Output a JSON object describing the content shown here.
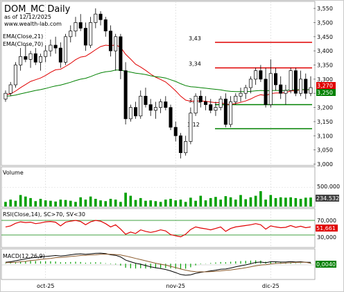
{
  "chart_data": {
    "type": "candlestick",
    "title": "DOM_MC Daily",
    "subtitle": "as of 12/12/2025",
    "source": "www.wealth-lab.com",
    "x_ticks": [
      "oct-25",
      "nov-25",
      "dic-25"
    ],
    "price_pane": {
      "legend": [
        "EMA(Close,21)",
        "EMA(Close,70)"
      ],
      "ylim": [
        3.0,
        3.56
      ],
      "y_ticks": [
        "3,550",
        "3,500",
        "3,450",
        "3,400",
        "3,350",
        "3,300",
        "3,250",
        "3,200",
        "3,150",
        "3,100",
        "3,050",
        "3,000"
      ],
      "last_badges": [
        "3,270",
        "3,250"
      ],
      "levels": [
        {
          "label": "3,43",
          "value": 3.43,
          "color": "#e00000"
        },
        {
          "label": "3,34",
          "value": 3.34,
          "color": "#e00000"
        },
        {
          "label": "3,21",
          "value": 3.21,
          "color": "#008000"
        },
        {
          "label": "3,12",
          "value": 3.125,
          "color": "#008000"
        }
      ],
      "candles": [
        [
          3.23,
          3.26,
          3.22,
          3.25
        ],
        [
          3.25,
          3.29,
          3.24,
          3.28
        ],
        [
          3.28,
          3.36,
          3.27,
          3.35
        ],
        [
          3.35,
          3.41,
          3.33,
          3.38
        ],
        [
          3.38,
          3.42,
          3.36,
          3.37
        ],
        [
          3.37,
          3.4,
          3.34,
          3.39
        ],
        [
          3.39,
          3.41,
          3.35,
          3.36
        ],
        [
          3.36,
          3.39,
          3.33,
          3.38
        ],
        [
          3.38,
          3.42,
          3.36,
          3.4
        ],
        [
          3.4,
          3.44,
          3.38,
          3.42
        ],
        [
          3.42,
          3.45,
          3.39,
          3.41
        ],
        [
          3.41,
          3.43,
          3.34,
          3.36
        ],
        [
          3.36,
          3.46,
          3.35,
          3.45
        ],
        [
          3.45,
          3.49,
          3.43,
          3.47
        ],
        [
          3.47,
          3.52,
          3.45,
          3.5
        ],
        [
          3.5,
          3.53,
          3.47,
          3.48
        ],
        [
          3.48,
          3.5,
          3.4,
          3.42
        ],
        [
          3.42,
          3.52,
          3.41,
          3.5
        ],
        [
          3.5,
          3.55,
          3.48,
          3.53
        ],
        [
          3.53,
          3.54,
          3.49,
          3.51
        ],
        [
          3.51,
          3.52,
          3.45,
          3.47
        ],
        [
          3.47,
          3.49,
          3.38,
          3.4
        ],
        [
          3.4,
          3.46,
          3.33,
          3.45
        ],
        [
          3.45,
          3.46,
          3.3,
          3.33
        ],
        [
          3.33,
          3.36,
          3.14,
          3.16
        ],
        [
          3.16,
          3.21,
          3.15,
          3.2
        ],
        [
          3.2,
          3.22,
          3.16,
          3.17
        ],
        [
          3.17,
          3.26,
          3.16,
          3.24
        ],
        [
          3.24,
          3.27,
          3.2,
          3.21
        ],
        [
          3.21,
          3.23,
          3.17,
          3.19
        ],
        [
          3.19,
          3.22,
          3.16,
          3.2
        ],
        [
          3.2,
          3.23,
          3.18,
          3.22
        ],
        [
          3.22,
          3.24,
          3.19,
          3.2
        ],
        [
          3.2,
          3.21,
          3.12,
          3.13
        ],
        [
          3.13,
          3.15,
          3.08,
          3.1
        ],
        [
          3.1,
          3.11,
          3.02,
          3.04
        ],
        [
          3.04,
          3.1,
          3.03,
          3.08
        ],
        [
          3.08,
          3.2,
          3.07,
          3.18
        ],
        [
          3.18,
          3.25,
          3.17,
          3.24
        ],
        [
          3.24,
          3.26,
          3.2,
          3.22
        ],
        [
          3.22,
          3.24,
          3.19,
          3.21
        ],
        [
          3.21,
          3.23,
          3.18,
          3.19
        ],
        [
          3.19,
          3.22,
          3.17,
          3.2
        ],
        [
          3.2,
          3.24,
          3.19,
          3.23
        ],
        [
          3.23,
          3.25,
          3.13,
          3.14
        ],
        [
          3.14,
          3.24,
          3.13,
          3.22
        ],
        [
          3.22,
          3.25,
          3.21,
          3.24
        ],
        [
          3.24,
          3.27,
          3.22,
          3.25
        ],
        [
          3.25,
          3.28,
          3.23,
          3.27
        ],
        [
          3.27,
          3.31,
          3.25,
          3.3
        ],
        [
          3.3,
          3.34,
          3.28,
          3.33
        ],
        [
          3.33,
          3.35,
          3.29,
          3.3
        ],
        [
          3.3,
          3.34,
          3.2,
          3.21
        ],
        [
          3.21,
          3.37,
          3.2,
          3.32
        ],
        [
          3.32,
          3.34,
          3.26,
          3.28
        ],
        [
          3.28,
          3.31,
          3.23,
          3.25
        ],
        [
          3.25,
          3.28,
          3.21,
          3.26
        ],
        [
          3.26,
          3.34,
          3.25,
          3.33
        ],
        [
          3.33,
          3.34,
          3.24,
          3.25
        ],
        [
          3.25,
          3.33,
          3.24,
          3.3
        ],
        [
          3.3,
          3.32,
          3.23,
          3.25
        ],
        [
          3.25,
          3.31,
          3.24,
          3.27
        ]
      ],
      "ema21": [
        3.245,
        3.248,
        3.258,
        3.27,
        3.281,
        3.292,
        3.298,
        3.304,
        3.313,
        3.324,
        3.333,
        3.335,
        3.345,
        3.356,
        3.369,
        3.378,
        3.381,
        3.392,
        3.404,
        3.415,
        3.42,
        3.418,
        3.421,
        3.413,
        3.388,
        3.371,
        3.353,
        3.343,
        3.331,
        3.318,
        3.307,
        3.299,
        3.29,
        3.275,
        3.259,
        3.24,
        3.226,
        3.222,
        3.223,
        3.223,
        3.222,
        3.219,
        3.217,
        3.218,
        3.211,
        3.211,
        3.214,
        3.218,
        3.223,
        3.23,
        3.239,
        3.245,
        3.242,
        3.249,
        3.251,
        3.251,
        3.252,
        3.259,
        3.259,
        3.263,
        3.262,
        3.263
      ],
      "ema70": [
        3.24,
        3.241,
        3.244,
        3.248,
        3.252,
        3.256,
        3.26,
        3.263,
        3.267,
        3.272,
        3.276,
        3.279,
        3.284,
        3.289,
        3.295,
        3.3,
        3.303,
        3.309,
        3.316,
        3.322,
        3.326,
        3.328,
        3.332,
        3.332,
        3.328,
        3.325,
        3.321,
        3.319,
        3.316,
        3.312,
        3.309,
        3.307,
        3.304,
        3.298,
        3.292,
        3.284,
        3.277,
        3.273,
        3.272,
        3.27,
        3.268,
        3.266,
        3.264,
        3.262,
        3.259,
        3.257,
        3.256,
        3.256,
        3.256,
        3.257,
        3.259,
        3.26,
        3.259,
        3.26,
        3.26,
        3.26,
        3.26,
        3.262,
        3.262,
        3.263,
        3.263,
        3.263
      ]
    },
    "volume_pane": {
      "label": "Volume",
      "y_ticks": [
        "500.000"
      ],
      "last_badge": "234.532",
      "max": 1000000,
      "values": [
        120000,
        180000,
        150000,
        300000,
        260000,
        220000,
        140000,
        200000,
        160000,
        150000,
        130000,
        180000,
        170000,
        150000,
        120000,
        240000,
        180000,
        260000,
        200000,
        160000,
        140000,
        200000,
        180000,
        120000,
        360000,
        280000,
        170000,
        220000,
        150000,
        160000,
        140000,
        120000,
        180000,
        200000,
        160000,
        180000,
        120000,
        230000,
        150000,
        280000,
        160000,
        220000,
        250000,
        180000,
        270000,
        240000,
        180000,
        300000,
        190000,
        240000,
        280000,
        400000,
        180000,
        300000,
        220000,
        240000,
        230000,
        240000,
        220000,
        200000,
        230000,
        234532
      ]
    },
    "rsi_pane": {
      "label": "RSI(Close,14), SC>70, SV<30",
      "ylim": [
        0,
        100
      ],
      "y_ticks": [
        "70,000",
        "30,000"
      ],
      "last_badge": "51,661",
      "values": [
        52,
        55,
        62,
        66,
        64,
        65,
        61,
        63,
        66,
        67,
        65,
        55,
        65,
        68,
        70,
        67,
        58,
        66,
        70,
        68,
        61,
        52,
        58,
        46,
        32,
        38,
        34,
        44,
        40,
        37,
        40,
        44,
        41,
        31,
        28,
        25,
        32,
        45,
        52,
        49,
        47,
        44,
        48,
        52,
        40,
        48,
        52,
        54,
        56,
        58,
        61,
        58,
        46,
        55,
        52,
        50,
        51,
        56,
        51,
        54,
        50,
        52
      ]
    },
    "macd_pane": {
      "label": "MACD(12,26,9)",
      "ylim": [
        -0.06,
        0.05
      ],
      "last_badge": "0,0040",
      "macd": [
        0.006,
        0.008,
        0.012,
        0.016,
        0.02,
        0.024,
        0.026,
        0.028,
        0.03,
        0.032,
        0.034,
        0.032,
        0.034,
        0.037,
        0.04,
        0.041,
        0.039,
        0.041,
        0.043,
        0.044,
        0.042,
        0.037,
        0.035,
        0.028,
        0.015,
        0.008,
        0.002,
        -0.002,
        -0.008,
        -0.013,
        -0.017,
        -0.02,
        -0.024,
        -0.03,
        -0.037,
        -0.045,
        -0.048,
        -0.046,
        -0.04,
        -0.036,
        -0.033,
        -0.03,
        -0.027,
        -0.023,
        -0.022,
        -0.018,
        -0.013,
        -0.009,
        -0.005,
        0.0,
        0.005,
        0.007,
        0.004,
        0.008,
        0.008,
        0.007,
        0.007,
        0.009,
        0.007,
        0.008,
        0.006,
        0.006
      ],
      "signal": [
        0.004,
        0.005,
        0.006,
        0.008,
        0.01,
        0.013,
        0.015,
        0.018,
        0.02,
        0.022,
        0.025,
        0.026,
        0.028,
        0.03,
        0.032,
        0.034,
        0.035,
        0.036,
        0.037,
        0.039,
        0.04,
        0.039,
        0.038,
        0.036,
        0.032,
        0.027,
        0.022,
        0.017,
        0.012,
        0.007,
        0.002,
        -0.002,
        -0.006,
        -0.011,
        -0.016,
        -0.022,
        -0.027,
        -0.031,
        -0.033,
        -0.034,
        -0.034,
        -0.033,
        -0.032,
        -0.03,
        -0.028,
        -0.026,
        -0.023,
        -0.02,
        -0.017,
        -0.013,
        -0.009,
        -0.006,
        -0.004,
        -0.001,
        0.001,
        0.002,
        0.003,
        0.004,
        0.005,
        0.006,
        0.006,
        0.002
      ]
    }
  }
}
